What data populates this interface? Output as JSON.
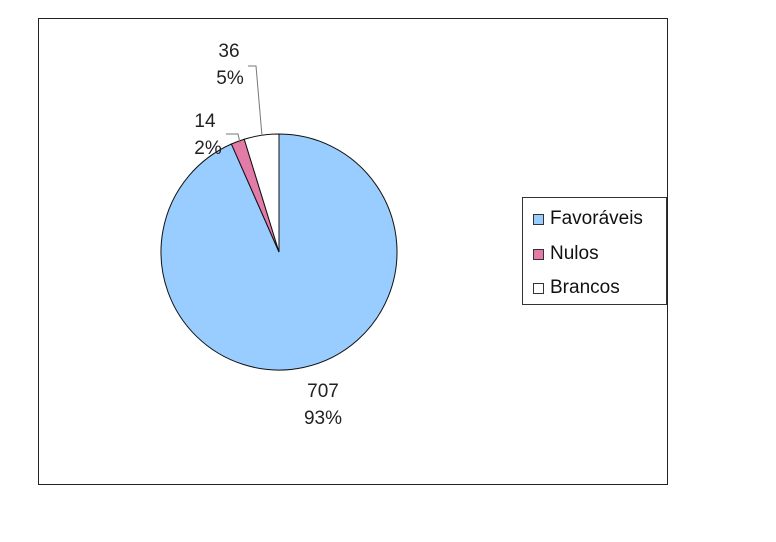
{
  "chart_data": {
    "type": "pie",
    "title": "",
    "categories": [
      "Favoráveis",
      "Nulos",
      "Brancos"
    ],
    "values": [
      707,
      14,
      36
    ],
    "percent_labels": [
      "93%",
      "2%",
      "5%"
    ],
    "value_labels": [
      "707",
      "14",
      "36"
    ],
    "colors": [
      "#99ccff",
      "#e27ba8",
      "#ffffff"
    ],
    "start_angle_deg": 0,
    "direction": "clockwise",
    "legend_position": "right",
    "grid": false
  }
}
